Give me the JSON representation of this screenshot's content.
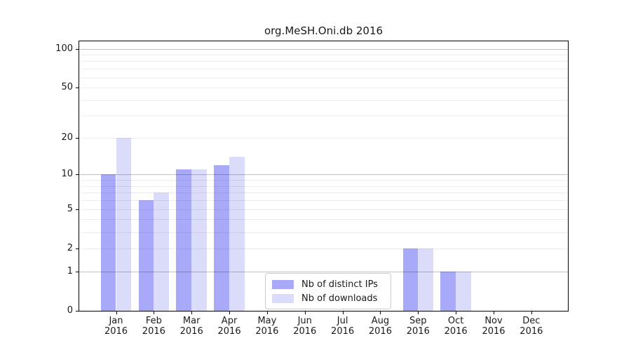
{
  "chart_data": {
    "type": "bar",
    "title": "org.MeSH.Oni.db 2016",
    "year": "2016",
    "months": [
      "Jan",
      "Feb",
      "Mar",
      "Apr",
      "May",
      "Jun",
      "Jul",
      "Aug",
      "Sep",
      "Oct",
      "Nov",
      "Dec"
    ],
    "categories": [
      "Jan 2016",
      "Feb 2016",
      "Mar 2016",
      "Apr 2016",
      "May 2016",
      "Jun 2016",
      "Jul 2016",
      "Aug 2016",
      "Sep 2016",
      "Oct 2016",
      "Nov 2016",
      "Dec 2016"
    ],
    "series": [
      {
        "name": "Nb of distinct IPs",
        "color": "#a9a9fa",
        "values": [
          10,
          6,
          11,
          12,
          0,
          0,
          0,
          0,
          2,
          1,
          0,
          0
        ]
      },
      {
        "name": "Nb of downloads",
        "color": "#dbdbfa",
        "values": [
          20,
          7,
          11,
          14,
          0,
          0,
          0,
          0,
          2,
          1,
          0,
          0
        ]
      }
    ],
    "xlabel": "",
    "ylabel": "",
    "yscale": "log1p",
    "yticks": [
      0,
      1,
      2,
      5,
      10,
      20,
      50,
      100
    ],
    "major_gridlines": [
      1,
      10,
      100
    ],
    "minor_gridlines": [
      2,
      3,
      4,
      5,
      6,
      7,
      8,
      9,
      20,
      30,
      40,
      50,
      60,
      70,
      80,
      90
    ],
    "ylim": [
      0,
      114
    ],
    "grid": "horizontal",
    "legend_position": "lower-center-inside",
    "axis_color": "#000000",
    "text_color": "#1a1a1a"
  }
}
